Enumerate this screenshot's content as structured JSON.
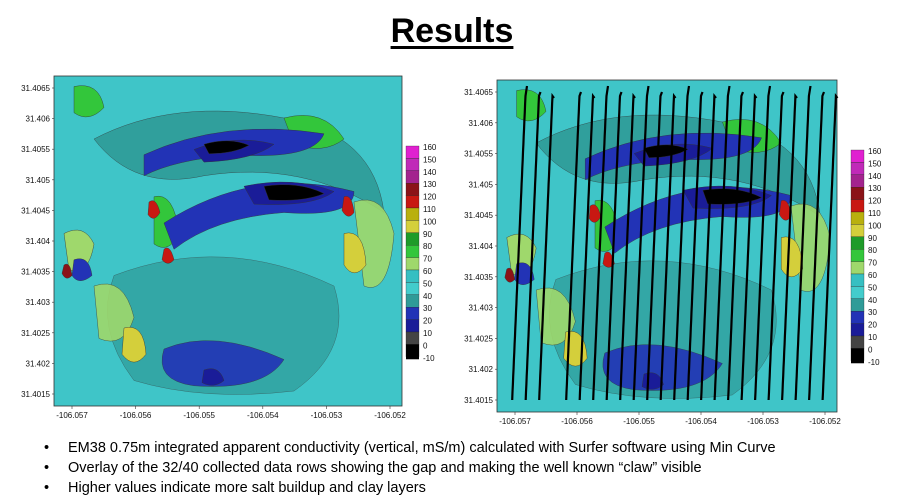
{
  "page": {
    "title": "Results"
  },
  "legend": {
    "levels": [
      "160",
      "150",
      "140",
      "130",
      "120",
      "110",
      "100",
      "90",
      "80",
      "70",
      "60",
      "50",
      "40",
      "30",
      "20",
      "10",
      "0",
      "-10"
    ],
    "colors": [
      "#e020d0",
      "#c02ab8",
      "#a3248e",
      "#8b1318",
      "#c81812",
      "#b9b00e",
      "#d4cf3b",
      "#1e9b29",
      "#33c63b",
      "#9fd86c",
      "#36bfc2",
      "#43cccc",
      "#2f9b98",
      "#2233b6",
      "#1a1c98",
      "#444444",
      "#000000",
      "#000000"
    ]
  },
  "maps": [
    {
      "yticks": [
        "31.4065",
        "31.406",
        "31.4055",
        "31.405",
        "31.4045",
        "31.404",
        "31.4035",
        "31.403",
        "31.4025",
        "31.402",
        "31.4015"
      ],
      "xticks": [
        "-106.057",
        "-106.056",
        "-106.055",
        "-106.054",
        "-106.053",
        "-106.052"
      ]
    },
    {
      "yticks": [
        "31.4065",
        "31.406",
        "31.4055",
        "31.405",
        "31.4045",
        "31.404",
        "31.4035",
        "31.403",
        "31.4025",
        "31.402",
        "31.4015"
      ],
      "xticks": [
        "-106.057",
        "-106.056",
        "-106.055",
        "-106.054",
        "-106.053",
        "-106.052"
      ]
    }
  ],
  "bullets": [
    "EM38 0.75m integrated apparent conductivity (vertical, mS/m) calculated with Surfer software using Min Curve",
    "Overlay of the 32/40 collected data rows showing the gap and making the well known “claw” visible",
    "Higher values indicate more salt buildup and clay layers"
  ]
}
